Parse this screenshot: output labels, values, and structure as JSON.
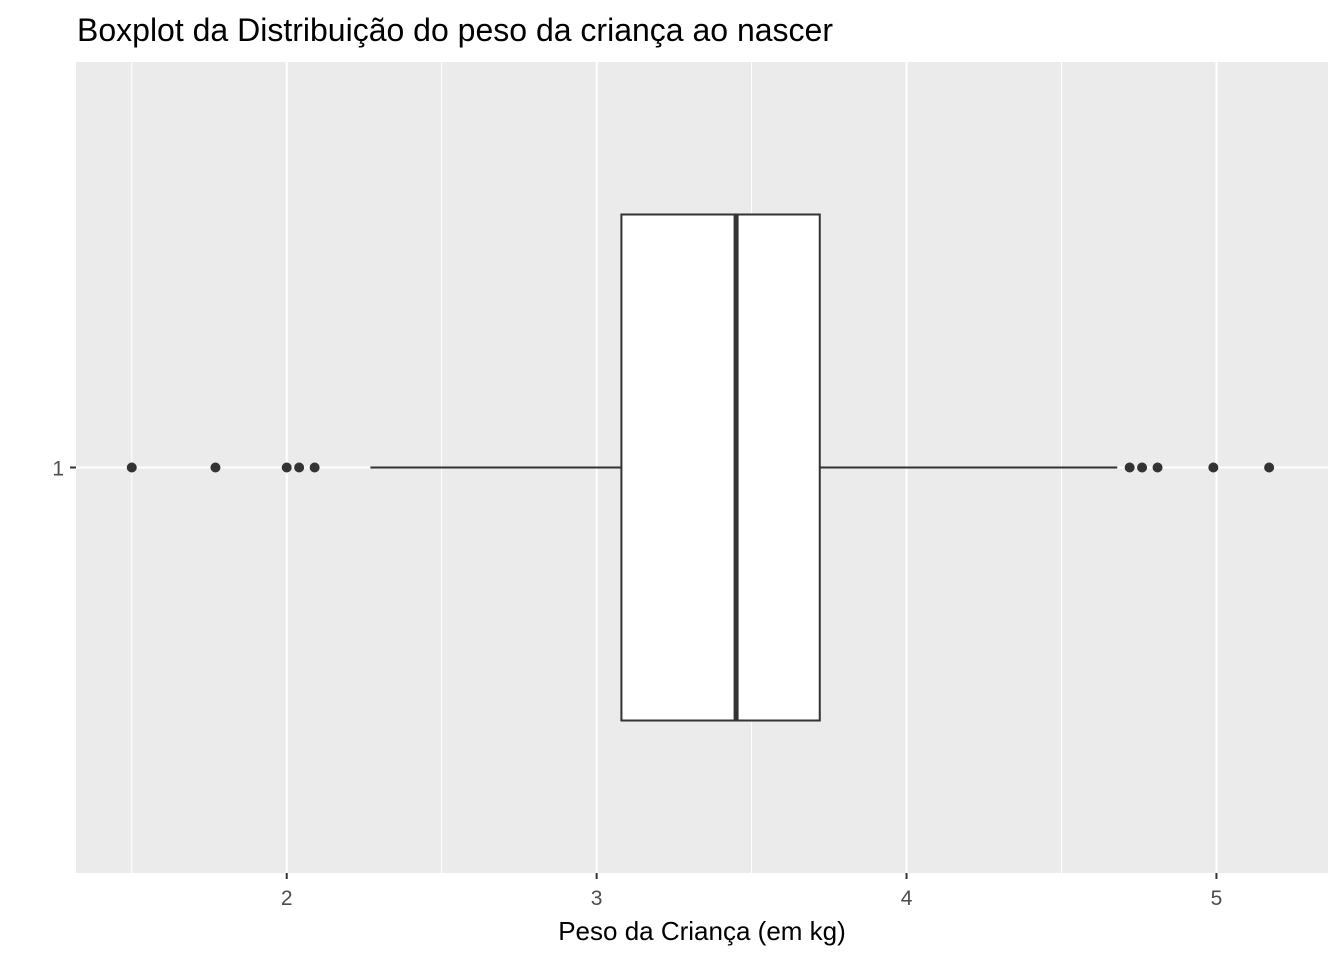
{
  "chart_data": {
    "type": "boxplot",
    "orientation": "horizontal",
    "title": "Boxplot da Distribuição do peso da criança ao nascer",
    "xlabel": "Peso da Criança (em kg)",
    "ylabel": "",
    "xlim": [
      1.32,
      5.36
    ],
    "x_ticks": [
      2,
      3,
      4,
      5
    ],
    "x_tick_labels": [
      "2",
      "3",
      "4",
      "5"
    ],
    "y_categories": [
      "1"
    ],
    "grid": true,
    "legend": "none",
    "boxes": [
      {
        "category": "1",
        "whisker_low": 2.27,
        "q1": 3.08,
        "median": 3.45,
        "q3": 3.72,
        "whisker_high": 4.68,
        "outliers": [
          1.5,
          1.77,
          2.0,
          2.04,
          2.09,
          4.72,
          4.76,
          4.81,
          4.99,
          5.17
        ]
      }
    ],
    "colors": {
      "panel_background": "#ebebeb",
      "grid": "#ffffff",
      "box_fill": "#ffffff",
      "box_stroke": "#333333",
      "points": "#333333"
    }
  }
}
